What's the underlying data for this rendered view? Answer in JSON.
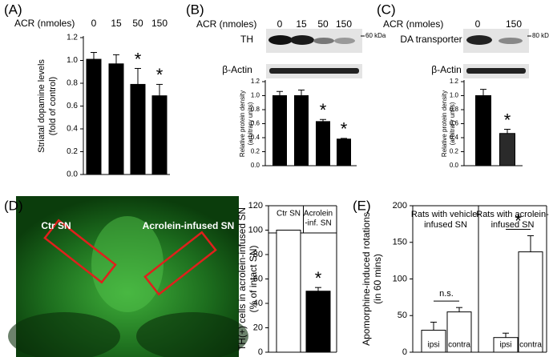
{
  "chart_data": [
    {
      "type": "bar",
      "panel": "(A)",
      "x_header": "ACR (nmoles)",
      "categories": [
        "0",
        "15",
        "50",
        "150"
      ],
      "ylabel": [
        "Striatal dopamine levels",
        "(fold of control)"
      ],
      "values": [
        1.01,
        0.97,
        0.79,
        0.69
      ],
      "errors": [
        0.06,
        0.08,
        0.14,
        0.1
      ],
      "markers": [
        null,
        null,
        "*",
        "*"
      ],
      "color": "#000000",
      "ylim": [
        0,
        1.2
      ],
      "yticks": [
        {
          "value": 0,
          "label": "0.0"
        },
        {
          "value": 0.2,
          "label": "0.2"
        },
        {
          "value": 0.4,
          "label": "0.4"
        },
        {
          "value": 0.6,
          "label": "0.6"
        },
        {
          "value": 0.8,
          "label": "0.8"
        },
        {
          "value": 1,
          "label": "1.0"
        },
        {
          "value": 1.2,
          "label": "1.2"
        }
      ]
    },
    {
      "type": "bar",
      "panel": "(B)",
      "x_header": "ACR (nmoles)",
      "categories": [
        "0",
        "15",
        "50",
        "150"
      ],
      "blot_labels": [
        "TH",
        "β-Actin"
      ],
      "blot_size": "60 kDa",
      "ylabel": [
        "Relative protein density",
        "(arbitrary units)"
      ],
      "values": [
        1.0,
        1.0,
        0.63,
        0.38
      ],
      "errors": [
        0.06,
        0.08,
        0.03,
        0.01
      ],
      "markers": [
        null,
        null,
        "*",
        "*"
      ],
      "color": "#000000",
      "ylim": [
        0,
        1.2
      ],
      "yticks": [
        {
          "value": 0,
          "label": "0.0"
        },
        {
          "value": 0.2,
          "label": "0.2"
        },
        {
          "value": 0.4,
          "label": "0.4"
        },
        {
          "value": 0.6,
          "label": "0.6"
        },
        {
          "value": 0.8,
          "label": "0.8"
        },
        {
          "value": 1,
          "label": "1.0"
        },
        {
          "value": 1.2,
          "label": "1.2"
        }
      ]
    },
    {
      "type": "bar",
      "panel": "(C)",
      "x_header": "ACR (nmoles)",
      "categories": [
        "0",
        "150"
      ],
      "blot_labels": [
        "DA transporter",
        "β-Actin"
      ],
      "blot_size": "80 kDa",
      "ylabel": [
        "Relative protein density",
        "(arbitrary units)"
      ],
      "values": [
        1.0,
        0.46
      ],
      "errors": [
        0.09,
        0.06
      ],
      "markers": [
        null,
        "*"
      ],
      "colors": [
        "#000000",
        "#2a2a2a"
      ],
      "ylim": [
        0,
        1.2
      ],
      "yticks": [
        {
          "value": 0,
          "label": "0.0"
        },
        {
          "value": 0.2,
          "label": "0.2"
        },
        {
          "value": 0.4,
          "label": "0.4"
        },
        {
          "value": 0.6,
          "label": "0.6"
        },
        {
          "value": 0.8,
          "label": "0.8"
        },
        {
          "value": 1,
          "label": "1.0"
        },
        {
          "value": 1.2,
          "label": "1.2"
        }
      ]
    },
    {
      "type": "bar",
      "panel": "(D)",
      "image_labels": [
        "Ctr SN",
        "Acrolein-infused SN"
      ],
      "categories": [
        [
          "Ctr SN"
        ],
        [
          "Acrolein",
          "-inf. SN"
        ]
      ],
      "ylabel": [
        "TH(+) cells in acrolein-infused SN",
        "(% of intact SN)"
      ],
      "values": [
        100,
        50
      ],
      "errors": [
        0,
        3
      ],
      "markers": [
        null,
        "*"
      ],
      "colors": [
        "#ffffff",
        "#000000"
      ],
      "ylim": [
        0,
        120
      ],
      "yticks": [
        0,
        20,
        40,
        60,
        80,
        100,
        120
      ]
    },
    {
      "type": "bar",
      "panel": "(E)",
      "groups": [
        {
          "label": [
            "Rats with vehicle-",
            "infused SN"
          ],
          "comparison": "n.s."
        },
        {
          "label": [
            "Rats with acrolein-",
            "infused SN"
          ],
          "comparison": "*"
        }
      ],
      "categories": [
        "ipsi",
        "contra",
        "ipsi",
        "contra"
      ],
      "ylabel": [
        "Apomorphine-induced rotations",
        "(in 60 mins)"
      ],
      "values": [
        30,
        55,
        20,
        137
      ],
      "errors": [
        11,
        6,
        6,
        22
      ],
      "color": "#ffffff",
      "ylim": [
        0,
        200
      ],
      "yticks": [
        0,
        50,
        100,
        150,
        200
      ]
    }
  ]
}
